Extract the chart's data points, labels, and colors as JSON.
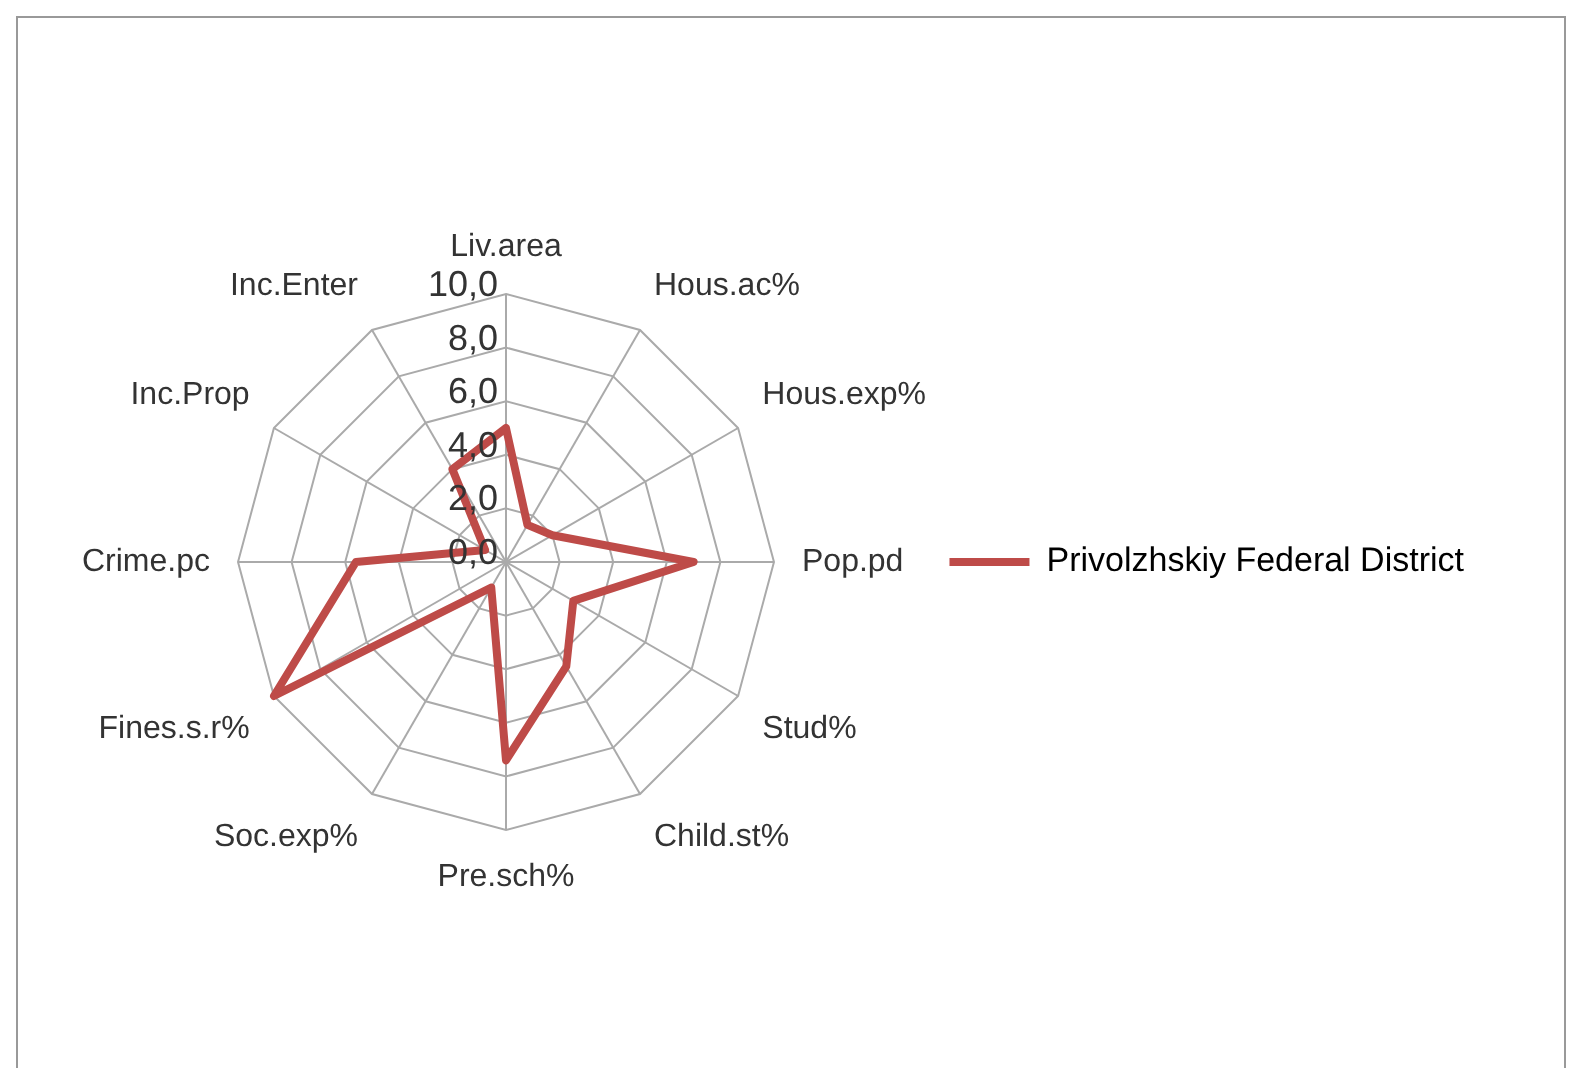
{
  "chart_data": {
    "type": "radar",
    "categories": [
      "Liv.area",
      "Hous.ac%",
      "Hous.exp%",
      "Pop.pd",
      "Stud%",
      "Child.st%",
      "Pre.sch%",
      "Soc.exp%",
      "Fines.s.r%",
      "Crime.pc",
      "Inc.Prop",
      "Inc.Enter"
    ],
    "series": [
      {
        "name": "Privolzhskiy Federal District",
        "color": "#be4b48",
        "values": [
          5.0,
          1.6,
          2.0,
          7.0,
          2.9,
          4.5,
          7.4,
          1.1,
          10.0,
          5.6,
          0.9,
          4.0
        ]
      }
    ],
    "ylim": [
      0,
      10
    ],
    "yticks": [
      {
        "value": 0,
        "label": "0,0"
      },
      {
        "value": 2,
        "label": "2,0"
      },
      {
        "value": 4,
        "label": "4,0"
      },
      {
        "value": 6,
        "label": "6,0"
      },
      {
        "value": 8,
        "label": "8,0"
      },
      {
        "value": 10,
        "label": "10,0"
      }
    ],
    "grid": true,
    "legend": "right",
    "marker": "none"
  }
}
